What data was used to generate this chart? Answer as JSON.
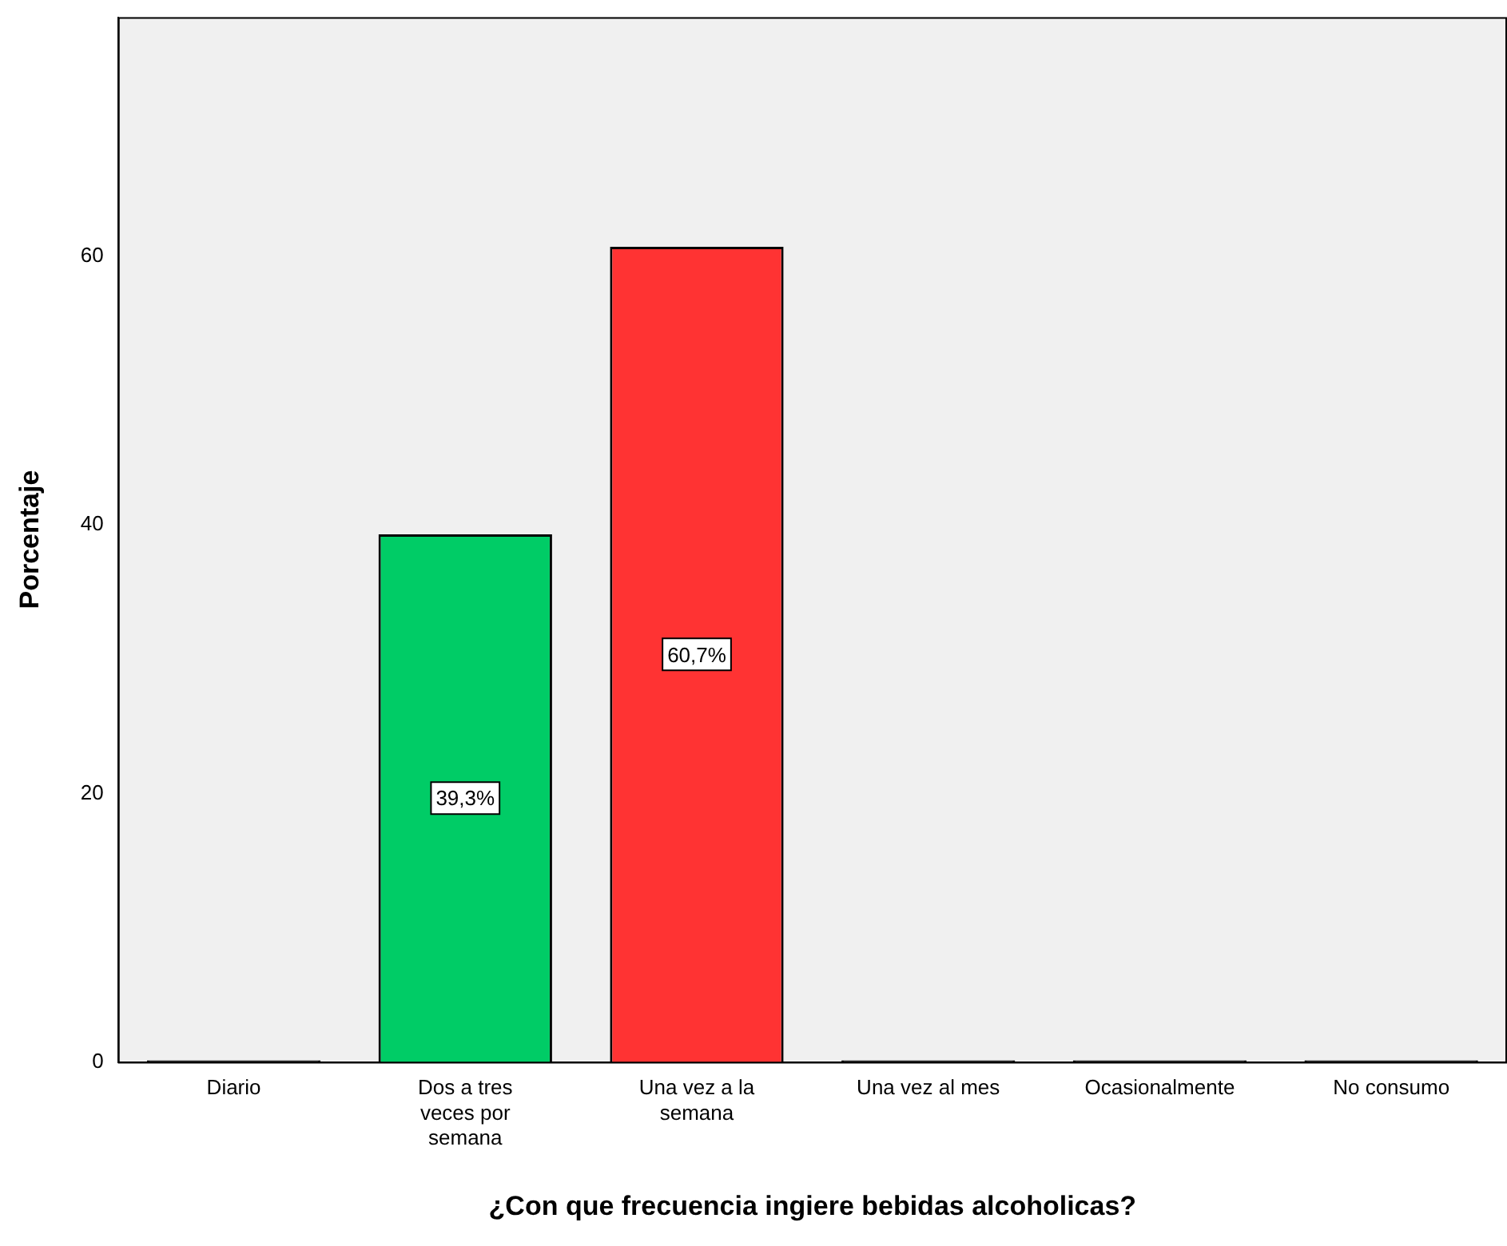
{
  "chart_data": {
    "type": "bar",
    "xlabel": "¿Con que frecuencia ingiere bebidas alcoholicas?",
    "ylabel": "Porcentaje",
    "categories": [
      "Diario",
      "Dos a tres veces por semana",
      "Una vez a la semana",
      "Una vez al mes",
      "Ocasionalmente",
      "No consumo"
    ],
    "values": [
      0,
      39.3,
      60.7,
      0,
      0,
      0
    ],
    "colors": [
      "#000000",
      "#00cc66",
      "#ff3333",
      "#000000",
      "#000000",
      "#000000"
    ],
    "value_labels": [
      null,
      "39,3%",
      "60,7%",
      null,
      null,
      null
    ],
    "ylim": [
      0,
      77.8
    ],
    "yticks": [
      0,
      20,
      40,
      60
    ],
    "grid": false,
    "legend": false
  }
}
